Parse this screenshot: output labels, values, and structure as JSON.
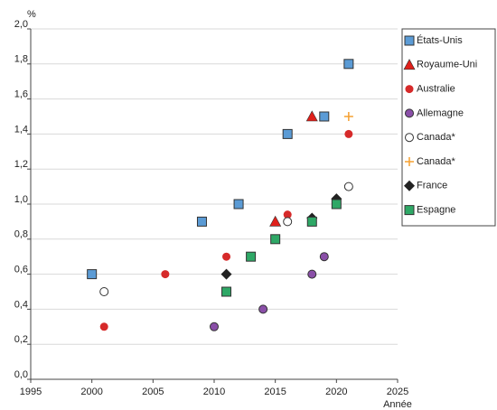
{
  "chart_data": {
    "type": "scatter",
    "ylabel": "%",
    "xlabel": "Année",
    "xlim": [
      1995,
      2025
    ],
    "xticks": [
      1995,
      2000,
      2005,
      2010,
      2015,
      2020,
      2025
    ],
    "ylim": [
      0,
      2
    ],
    "yticks": [
      {
        "value": 0,
        "label": "0,0"
      },
      {
        "value": 0.2,
        "label": "0,2"
      },
      {
        "value": 0.4,
        "label": "0,4"
      },
      {
        "value": 0.6,
        "label": "0,6"
      },
      {
        "value": 0.8,
        "label": "0,8"
      },
      {
        "value": 1,
        "label": "1,0"
      },
      {
        "value": 1.2,
        "label": "1,2"
      },
      {
        "value": 1.4,
        "label": "1,4"
      },
      {
        "value": 1.6,
        "label": "1,6"
      },
      {
        "value": 1.8,
        "label": "1,8"
      },
      {
        "value": 2,
        "label": "2,0"
      }
    ],
    "grid": true,
    "legend": "right",
    "series": [
      {
        "name": "États-Unis",
        "color": "#5b9bd5",
        "marker": "square",
        "x": [
          2000,
          2009,
          2012,
          2016,
          2019,
          2021
        ],
        "values": [
          0.6,
          0.9,
          1.0,
          1.4,
          1.5,
          1.8
        ]
      },
      {
        "name": "Royaume-Uni",
        "color": "#e0201b",
        "marker": "triangle",
        "x": [
          2015,
          2018
        ],
        "values": [
          0.9,
          1.5
        ]
      },
      {
        "name": "Australie",
        "color": "#d62a2a",
        "marker": "circle",
        "x": [
          2001,
          2006,
          2011,
          2016,
          2021
        ],
        "values": [
          0.3,
          0.6,
          0.7,
          0.94,
          1.4
        ]
      },
      {
        "name": "Allemagne",
        "color": "#8a4fa8",
        "marker": "circle-outlined",
        "x": [
          2010,
          2014,
          2018,
          2019
        ],
        "values": [
          0.3,
          0.4,
          0.6,
          0.7
        ]
      },
      {
        "name": "Canada*",
        "color": "#ffffff",
        "marker": "circle-outlined",
        "x": [
          2001,
          2016,
          2021
        ],
        "values": [
          0.5,
          0.9,
          1.1
        ]
      },
      {
        "name": "Canada*",
        "color": "#f5a031",
        "marker": "plus",
        "x": [
          2021
        ],
        "values": [
          1.5
        ]
      },
      {
        "name": "France",
        "color": "#222222",
        "marker": "diamond",
        "x": [
          2011,
          2018,
          2020
        ],
        "values": [
          0.6,
          0.92,
          1.03
        ]
      },
      {
        "name": "Espagne",
        "color": "#2ea866",
        "marker": "square",
        "x": [
          2011,
          2013,
          2015,
          2018,
          2020
        ],
        "values": [
          0.5,
          0.7,
          0.8,
          0.9,
          1.0
        ]
      }
    ]
  }
}
